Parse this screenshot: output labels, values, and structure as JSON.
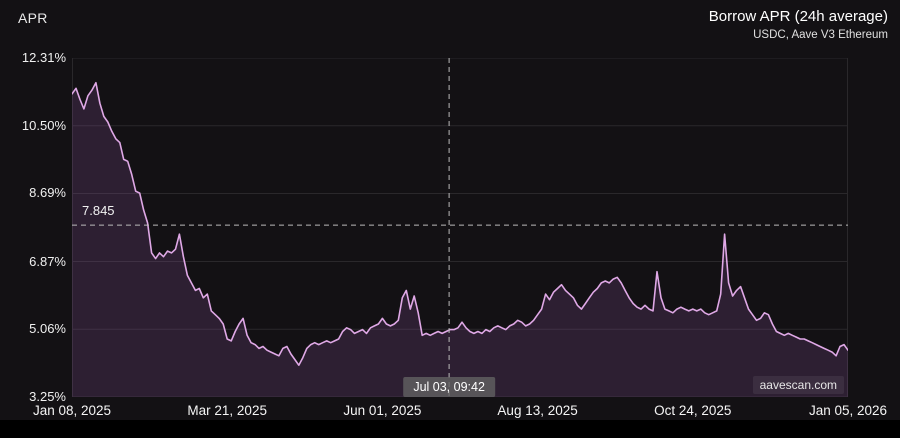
{
  "header": {
    "axis_title": "APR",
    "title": "Borrow APR (24h average)",
    "subtitle": "USDC, Aave V3 Ethereum"
  },
  "watermark": "aavescan.com",
  "colors": {
    "background": "#131114",
    "line": "#dfa8e6",
    "fill": "rgba(140,80,160,0.22)",
    "grid": "#2a282b",
    "dashed": "#bbbbbb",
    "text": "#ececec"
  },
  "chart_data": {
    "type": "area",
    "title": "Borrow APR (24h average)",
    "subtitle": "USDC, Aave V3 Ethereum",
    "series_name": "USDC borrow APR (24h average)",
    "xlabel": "",
    "ylabel": "APR",
    "grid": "horizontal",
    "legend": "none",
    "x_tick_labels": [
      "Jan 08, 2025",
      "Mar 21, 2025",
      "Jun 01, 2025",
      "Aug 13, 2025",
      "Oct 24, 2025",
      "Jan 05, 2026"
    ],
    "y_tick_labels": [
      "12.31%",
      "10.50%",
      "8.69%",
      "6.87%",
      "5.06%",
      "3.25%"
    ],
    "y_ticks": [
      12.31,
      10.5,
      8.69,
      6.87,
      5.06,
      3.25
    ],
    "ylim": [
      3.25,
      12.31
    ],
    "reference_line": {
      "value": 7.845,
      "label": "7.845",
      "style": "dashed"
    },
    "crosshair": {
      "t": 0.486,
      "label": "Jul 03, 09:42",
      "style": "dashed"
    },
    "values": [
      11.35,
      11.5,
      11.2,
      10.95,
      11.3,
      11.45,
      11.65,
      11.1,
      10.75,
      10.6,
      10.35,
      10.15,
      10.05,
      9.6,
      9.55,
      9.2,
      8.75,
      8.7,
      8.25,
      7.9,
      7.1,
      6.95,
      7.1,
      7.0,
      7.15,
      7.1,
      7.2,
      7.6,
      7.0,
      6.5,
      6.3,
      6.1,
      6.15,
      5.9,
      6.0,
      5.55,
      5.45,
      5.35,
      5.2,
      4.8,
      4.75,
      5.0,
      5.2,
      5.35,
      4.9,
      4.7,
      4.65,
      4.55,
      4.6,
      4.5,
      4.45,
      4.4,
      4.35,
      4.55,
      4.6,
      4.4,
      4.25,
      4.1,
      4.3,
      4.55,
      4.65,
      4.7,
      4.65,
      4.7,
      4.75,
      4.7,
      4.75,
      4.8,
      5.0,
      5.1,
      5.05,
      4.95,
      5.0,
      5.05,
      4.95,
      5.1,
      5.15,
      5.2,
      5.35,
      5.2,
      5.15,
      5.2,
      5.3,
      5.9,
      6.1,
      5.6,
      5.95,
      5.5,
      4.9,
      4.95,
      4.9,
      4.95,
      5.0,
      4.95,
      5.0,
      5.05,
      5.05,
      5.1,
      5.25,
      5.1,
      5.0,
      4.95,
      5.0,
      4.95,
      5.05,
      5.0,
      5.1,
      5.15,
      5.1,
      5.05,
      5.15,
      5.2,
      5.3,
      5.25,
      5.15,
      5.2,
      5.3,
      5.45,
      5.6,
      6.0,
      5.85,
      6.05,
      6.15,
      6.25,
      6.1,
      6.0,
      5.9,
      5.7,
      5.6,
      5.75,
      5.9,
      6.05,
      6.15,
      6.3,
      6.35,
      6.3,
      6.4,
      6.45,
      6.3,
      6.1,
      5.9,
      5.75,
      5.65,
      5.6,
      5.7,
      5.6,
      5.55,
      6.6,
      5.9,
      5.6,
      5.55,
      5.5,
      5.6,
      5.65,
      5.6,
      5.55,
      5.6,
      5.55,
      5.6,
      5.5,
      5.45,
      5.5,
      5.55,
      6.0,
      7.6,
      6.3,
      5.95,
      6.1,
      6.2,
      5.9,
      5.6,
      5.45,
      5.3,
      5.35,
      5.5,
      5.45,
      5.2,
      5.0,
      4.95,
      4.9,
      4.95,
      4.9,
      4.85,
      4.8,
      4.8,
      4.75,
      4.7,
      4.65,
      4.6,
      4.55,
      4.5,
      4.45,
      4.35,
      4.6,
      4.65,
      4.5
    ]
  }
}
